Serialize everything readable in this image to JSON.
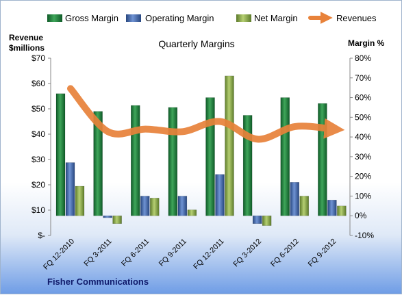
{
  "chart_data": {
    "type": "bar",
    "title": "Quarterly Margins",
    "company": "Fisher Communications",
    "y_left_label": [
      "Revenue",
      "$millions"
    ],
    "y_right_label": "Margin %",
    "y_left_ticks": [
      "$70",
      "$60",
      "$50",
      "$40",
      "$30",
      "$20",
      "$10",
      "$-"
    ],
    "y_right_ticks": [
      "80%",
      "70%",
      "60%",
      "50%",
      "40%",
      "30%",
      "20%",
      "10%",
      "0%",
      "-10%"
    ],
    "ylim_left": [
      0,
      70
    ],
    "ylim_right": [
      -10,
      80
    ],
    "categories": [
      "FQ 12-2010",
      "FQ 3-2011",
      "FQ 6-2011",
      "FQ 9-2011",
      "FQ 12-2011",
      "FQ 3-2012",
      "FQ 6-2012",
      "FQ 9-2012"
    ],
    "series": [
      {
        "name": "Gross Margin",
        "axis": "right",
        "values": [
          62,
          53,
          56,
          55,
          60,
          51,
          60,
          57
        ]
      },
      {
        "name": "Operating Margin",
        "axis": "right",
        "values": [
          27,
          -1,
          10,
          10,
          21,
          -4,
          17,
          8
        ]
      },
      {
        "name": "Net Margin",
        "axis": "right",
        "values": [
          15,
          -4,
          9,
          3,
          71,
          -5,
          10,
          5
        ]
      },
      {
        "name": "Revenues",
        "axis": "left",
        "type": "line",
        "values": [
          58,
          41,
          42,
          41,
          45,
          38,
          43,
          42
        ]
      }
    ],
    "legend": "top",
    "grid": false,
    "colors": {
      "Gross Margin": "#1f7a3c",
      "Operating Margin": "#3d63a8",
      "Net Margin": "#8aa84a",
      "Revenues": "#e8823a"
    }
  }
}
